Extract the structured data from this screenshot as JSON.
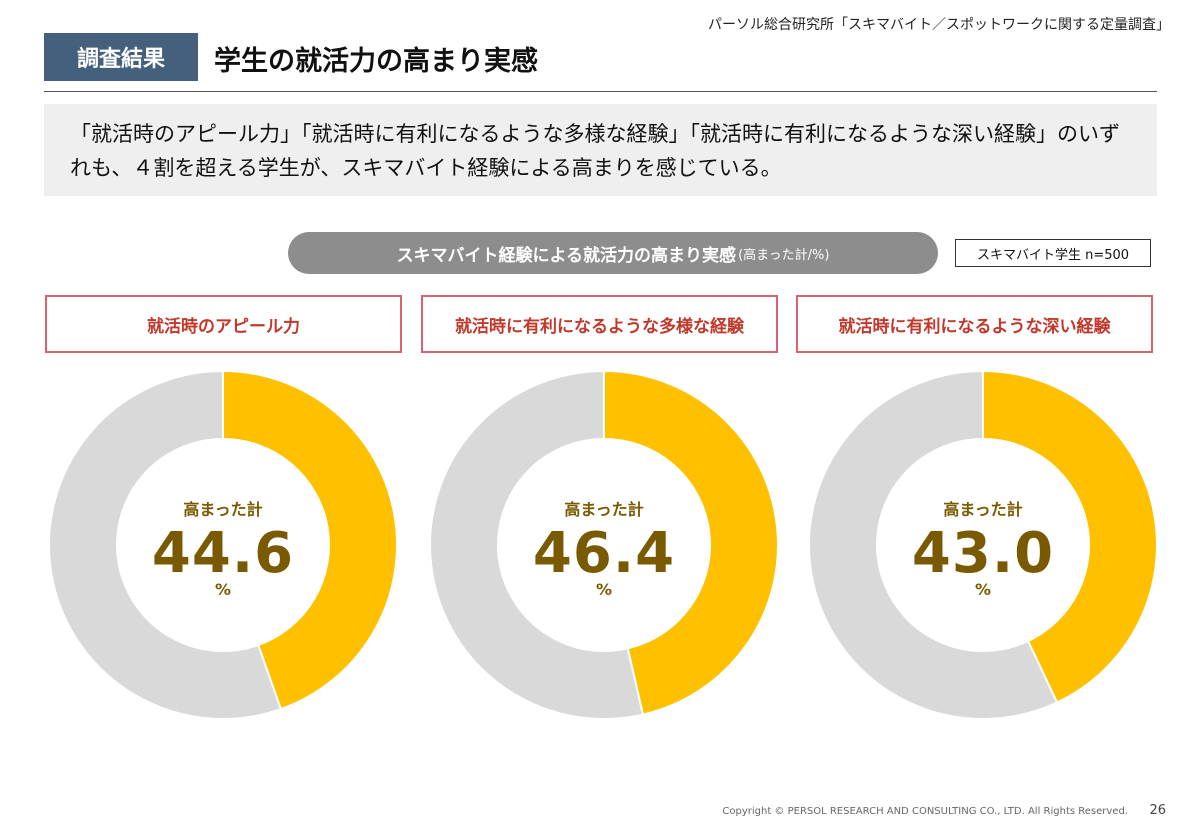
{
  "header": {
    "source": "パーソル総合研究所「スキマバイト／スポットワークに関する定量調査」",
    "tag": "調査結果",
    "title": "学生の就活力の高まり実感"
  },
  "summary": "「就活時のアピール力」「就活時に有利になるような多様な経験」「就活時に有利になるような深い経験」のいずれも、４割を超える学生が、スキマバイト経験による高まりを感じている。",
  "colors": {
    "filled": "#ffc000",
    "remainder": "#d9d9d9",
    "value_text": "#7a5a00",
    "box_border": "#d9636c",
    "box_text": "#c0392b"
  },
  "chart_data": {
    "type": "pie",
    "title": "スキマバイト経験による就活力の高まり実感",
    "title_unit": "(高まった計/%)",
    "sample": "スキマバイト学生  n=500",
    "center_label": "高まった計",
    "unit": "%",
    "charts": [
      {
        "category": "就活時のアピール力",
        "value": 44.6,
        "value_text": "44.6"
      },
      {
        "category": "就活時に有利になるような多様な経験",
        "value": 46.4,
        "value_text": "46.4"
      },
      {
        "category": "就活時に有利になるような深い経験",
        "value": 43.0,
        "value_text": "43.0"
      }
    ]
  },
  "footer": {
    "copyright": "Copyright © PERSOL RESEARCH AND CONSULTING CO., LTD. All Rights Reserved.",
    "page": "26"
  }
}
